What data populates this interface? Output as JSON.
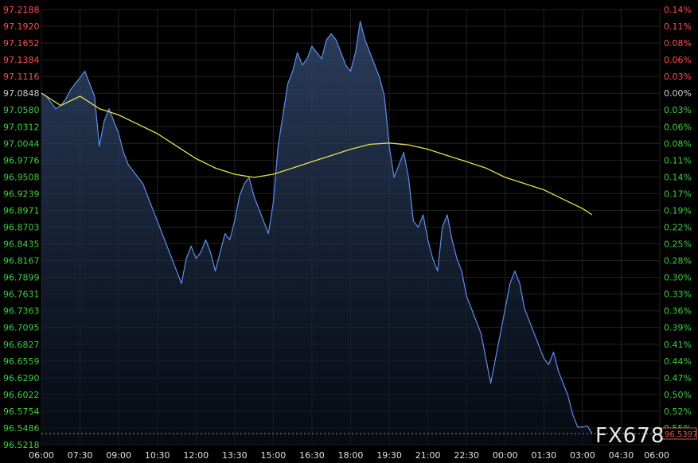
{
  "chart_data": {
    "type": "line",
    "title": "",
    "xlabel": "",
    "ylabel": "",
    "grid": true,
    "ylim": [
      96.5218,
      97.2188
    ],
    "reference_price": 97.0848,
    "last_value_label": "96.5397",
    "watermark": "FX678",
    "x_tick_labels": [
      "06:00",
      "07:30",
      "09:00",
      "10:30",
      "12:00",
      "13:30",
      "15:00",
      "16:30",
      "18:00",
      "19:30",
      "21:00",
      "22:30",
      "00:00",
      "01:30",
      "03:00",
      "04:30",
      "06:00"
    ],
    "y_ticks_left": [
      {
        "label": "97.2188",
        "color": "#ff4d4d"
      },
      {
        "label": "97.1920",
        "color": "#ff4d4d"
      },
      {
        "label": "97.1652",
        "color": "#ff4d4d"
      },
      {
        "label": "97.1384",
        "color": "#ff4d4d"
      },
      {
        "label": "97.1116",
        "color": "#ff4d4d"
      },
      {
        "label": "97.0848",
        "color": "#cfcfcf"
      },
      {
        "label": "97.0580",
        "color": "#3ecf3e"
      },
      {
        "label": "97.0312",
        "color": "#3ecf3e"
      },
      {
        "label": "97.0044",
        "color": "#3ecf3e"
      },
      {
        "label": "96.9776",
        "color": "#3ecf3e"
      },
      {
        "label": "96.9508",
        "color": "#3ecf3e"
      },
      {
        "label": "96.9239",
        "color": "#3ecf3e"
      },
      {
        "label": "96.8971",
        "color": "#3ecf3e"
      },
      {
        "label": "96.8703",
        "color": "#3ecf3e"
      },
      {
        "label": "96.8435",
        "color": "#3ecf3e"
      },
      {
        "label": "96.8167",
        "color": "#3ecf3e"
      },
      {
        "label": "96.7899",
        "color": "#3ecf3e"
      },
      {
        "label": "96.7631",
        "color": "#3ecf3e"
      },
      {
        "label": "96.7363",
        "color": "#3ecf3e"
      },
      {
        "label": "96.7095",
        "color": "#3ecf3e"
      },
      {
        "label": "96.6827",
        "color": "#3ecf3e"
      },
      {
        "label": "96.6559",
        "color": "#3ecf3e"
      },
      {
        "label": "96.6290",
        "color": "#3ecf3e"
      },
      {
        "label": "96.6022",
        "color": "#3ecf3e"
      },
      {
        "label": "96.5754",
        "color": "#3ecf3e"
      },
      {
        "label": "96.5486",
        "color": "#3ecf3e"
      },
      {
        "label": "96.5218",
        "color": "#3ecf3e"
      }
    ],
    "y_ticks_right": [
      {
        "label": "0.14%",
        "color": "#ff4d4d"
      },
      {
        "label": "0.11%",
        "color": "#ff4d4d"
      },
      {
        "label": "0.08%",
        "color": "#ff4d4d"
      },
      {
        "label": "0.06%",
        "color": "#ff4d4d"
      },
      {
        "label": "0.03%",
        "color": "#ff4d4d"
      },
      {
        "label": "0.00%",
        "color": "#cfcfcf"
      },
      {
        "label": "0.03%",
        "color": "#3ecf3e"
      },
      {
        "label": "0.06%",
        "color": "#3ecf3e"
      },
      {
        "label": "0.08%",
        "color": "#3ecf3e"
      },
      {
        "label": "0.11%",
        "color": "#3ecf3e"
      },
      {
        "label": "0.14%",
        "color": "#3ecf3e"
      },
      {
        "label": "0.17%",
        "color": "#3ecf3e"
      },
      {
        "label": "0.19%",
        "color": "#3ecf3e"
      },
      {
        "label": "0.22%",
        "color": "#3ecf3e"
      },
      {
        "label": "0.25%",
        "color": "#3ecf3e"
      },
      {
        "label": "0.28%",
        "color": "#3ecf3e"
      },
      {
        "label": "0.30%",
        "color": "#3ecf3e"
      },
      {
        "label": "0.33%",
        "color": "#3ecf3e"
      },
      {
        "label": "0.36%",
        "color": "#3ecf3e"
      },
      {
        "label": "0.39%",
        "color": "#3ecf3e"
      },
      {
        "label": "0.41%",
        "color": "#3ecf3e"
      },
      {
        "label": "0.44%",
        "color": "#3ecf3e"
      },
      {
        "label": "0.47%",
        "color": "#3ecf3e"
      },
      {
        "label": "0.50%",
        "color": "#3ecf3e"
      },
      {
        "label": "0.52%",
        "color": "#3ecf3e"
      },
      {
        "label": "0.55%",
        "color": "#3ecf3e"
      },
      {
        "label": "",
        "color": "#3ecf3e"
      }
    ],
    "series": [
      {
        "color": "#5b8ff0",
        "fill": true,
        "points": [
          [
            0,
            97.085
          ],
          [
            0.25,
            97.08
          ],
          [
            0.5,
            97.07
          ],
          [
            0.75,
            97.06
          ],
          [
            1,
            97.065
          ],
          [
            1.25,
            97.075
          ],
          [
            1.5,
            97.09
          ],
          [
            1.75,
            97.1
          ],
          [
            2,
            97.11
          ],
          [
            2.25,
            97.12
          ],
          [
            2.5,
            97.1
          ],
          [
            2.75,
            97.08
          ],
          [
            3,
            97.0
          ],
          [
            3.25,
            97.04
          ],
          [
            3.5,
            97.06
          ],
          [
            3.75,
            97.04
          ],
          [
            4,
            97.02
          ],
          [
            4.25,
            96.99
          ],
          [
            4.5,
            96.97
          ],
          [
            4.75,
            96.96
          ],
          [
            5,
            96.95
          ],
          [
            5.25,
            96.94
          ],
          [
            5.5,
            96.92
          ],
          [
            5.75,
            96.9
          ],
          [
            6,
            96.88
          ],
          [
            6.25,
            96.86
          ],
          [
            6.5,
            96.84
          ],
          [
            6.75,
            96.82
          ],
          [
            7,
            96.8
          ],
          [
            7.25,
            96.78
          ],
          [
            7.5,
            96.82
          ],
          [
            7.75,
            96.84
          ],
          [
            8,
            96.82
          ],
          [
            8.25,
            96.83
          ],
          [
            8.5,
            96.85
          ],
          [
            8.75,
            96.83
          ],
          [
            9,
            96.8
          ],
          [
            9.25,
            96.83
          ],
          [
            9.5,
            96.86
          ],
          [
            9.75,
            96.85
          ],
          [
            10,
            96.88
          ],
          [
            10.25,
            96.92
          ],
          [
            10.5,
            96.94
          ],
          [
            10.75,
            96.95
          ],
          [
            11,
            96.92
          ],
          [
            11.25,
            96.9
          ],
          [
            11.5,
            96.88
          ],
          [
            11.75,
            96.86
          ],
          [
            12,
            96.91
          ],
          [
            12.25,
            97.0
          ],
          [
            12.5,
            97.05
          ],
          [
            12.75,
            97.1
          ],
          [
            13,
            97.12
          ],
          [
            13.25,
            97.15
          ],
          [
            13.5,
            97.13
          ],
          [
            13.75,
            97.14
          ],
          [
            14,
            97.16
          ],
          [
            14.25,
            97.15
          ],
          [
            14.5,
            97.14
          ],
          [
            14.75,
            97.17
          ],
          [
            15,
            97.18
          ],
          [
            15.25,
            97.17
          ],
          [
            15.5,
            97.15
          ],
          [
            15.75,
            97.13
          ],
          [
            16,
            97.12
          ],
          [
            16.25,
            97.15
          ],
          [
            16.5,
            97.2
          ],
          [
            16.75,
            97.17
          ],
          [
            17,
            97.15
          ],
          [
            17.25,
            97.13
          ],
          [
            17.5,
            97.11
          ],
          [
            17.75,
            97.08
          ],
          [
            18,
            97.0
          ],
          [
            18.25,
            96.95
          ],
          [
            18.5,
            96.97
          ],
          [
            18.75,
            96.99
          ],
          [
            19,
            96.95
          ],
          [
            19.25,
            96.88
          ],
          [
            19.5,
            96.87
          ],
          [
            19.75,
            96.89
          ],
          [
            20,
            96.85
          ],
          [
            20.25,
            96.82
          ],
          [
            20.5,
            96.8
          ],
          [
            20.75,
            96.87
          ],
          [
            21,
            96.89
          ],
          [
            21.25,
            96.85
          ],
          [
            21.5,
            96.82
          ],
          [
            21.75,
            96.8
          ],
          [
            22,
            96.76
          ],
          [
            22.25,
            96.74
          ],
          [
            22.5,
            96.72
          ],
          [
            22.75,
            96.7
          ],
          [
            23,
            96.66
          ],
          [
            23.25,
            96.62
          ],
          [
            23.5,
            96.66
          ],
          [
            23.75,
            96.7
          ],
          [
            24,
            96.74
          ],
          [
            24.25,
            96.78
          ],
          [
            24.5,
            96.8
          ],
          [
            24.75,
            96.78
          ],
          [
            25,
            96.74
          ],
          [
            25.25,
            96.72
          ],
          [
            25.5,
            96.7
          ],
          [
            25.75,
            96.68
          ],
          [
            26,
            96.66
          ],
          [
            26.25,
            96.65
          ],
          [
            26.5,
            96.67
          ],
          [
            26.75,
            96.64
          ],
          [
            27,
            96.62
          ],
          [
            27.25,
            96.6
          ],
          [
            27.5,
            96.57
          ],
          [
            27.75,
            96.55
          ],
          [
            28,
            96.55
          ],
          [
            28.25,
            96.552
          ],
          [
            28.5,
            96.5397
          ]
        ]
      },
      {
        "color": "#e8e04a",
        "fill": false,
        "points": [
          [
            0,
            97.085
          ],
          [
            1,
            97.065
          ],
          [
            2,
            97.08
          ],
          [
            3,
            97.06
          ],
          [
            4,
            97.05
          ],
          [
            5,
            97.035
          ],
          [
            6,
            97.02
          ],
          [
            7,
            97.0
          ],
          [
            8,
            96.98
          ],
          [
            9,
            96.965
          ],
          [
            10,
            96.955
          ],
          [
            11,
            96.95
          ],
          [
            12,
            96.955
          ],
          [
            13,
            96.965
          ],
          [
            14,
            96.975
          ],
          [
            15,
            96.985
          ],
          [
            16,
            96.995
          ],
          [
            17,
            97.003
          ],
          [
            18,
            97.005
          ],
          [
            19,
            97.002
          ],
          [
            20,
            96.995
          ],
          [
            21,
            96.985
          ],
          [
            22,
            96.975
          ],
          [
            23,
            96.965
          ],
          [
            24,
            96.95
          ],
          [
            25,
            96.94
          ],
          [
            26,
            96.93
          ],
          [
            27,
            96.915
          ],
          [
            28,
            96.9
          ],
          [
            28.5,
            96.89
          ]
        ]
      }
    ]
  }
}
